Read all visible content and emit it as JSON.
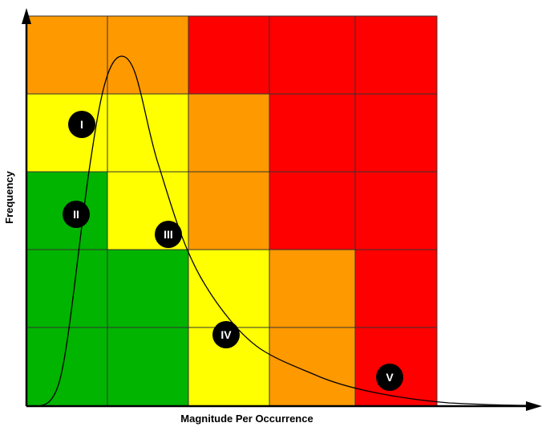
{
  "axes": {
    "x_title": "Magnitude Per Occurrence",
    "y_title": "Frequency"
  },
  "colors": {
    "green": "#00b400",
    "yellow": "#ffff00",
    "orange": "#ff9900",
    "red": "#ff0000",
    "grid_line": "#333333",
    "marker": "#000000",
    "marker_text": "#ffffff"
  },
  "grid": {
    "rows": 5,
    "cols": 5,
    "cells": [
      [
        "orange",
        "orange",
        "red",
        "red",
        "red"
      ],
      [
        "yellow",
        "yellow",
        "orange",
        "red",
        "red"
      ],
      [
        "green",
        "yellow",
        "orange",
        "red",
        "red"
      ],
      [
        "green",
        "green",
        "yellow",
        "orange",
        "red"
      ],
      [
        "green",
        "green",
        "yellow",
        "orange",
        "red"
      ]
    ]
  },
  "zones": [
    {
      "label": "I"
    },
    {
      "label": "II"
    },
    {
      "label": "III"
    },
    {
      "label": "IV"
    },
    {
      "label": "V"
    }
  ]
}
